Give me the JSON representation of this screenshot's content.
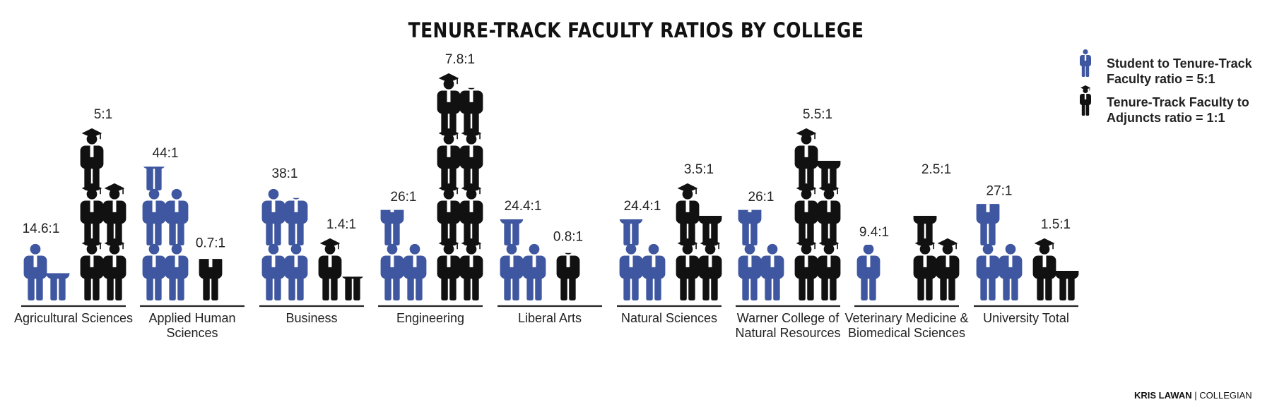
{
  "title": "TENURE-TRACK FACULTY RATIOS BY COLLEGE",
  "legend": [
    {
      "icon": "student-figure-icon",
      "color": "#3f57a0",
      "line1": "Student to Tenure-Track",
      "line2": "Faculty ratio = 5:1"
    },
    {
      "icon": "faculty-figure-icon",
      "color": "#111111",
      "line1": "Tenure-Track Faculty to",
      "line2": "Adjuncts ratio = 1:1"
    }
  ],
  "credit": {
    "author": "KRIS LAWAN",
    "outlet": "COLLEGIAN"
  },
  "colors": {
    "student": "#3f57a0",
    "faculty": "#111111",
    "axis": "#222222"
  },
  "chart_data": {
    "type": "pictograph",
    "units": {
      "student_icon": "Student to Tenure-Track Faculty ratio = 5:1",
      "faculty_icon": "Tenure-Track Faculty to Adjuncts ratio = 1:1"
    },
    "categories": [
      {
        "lines": [
          "Agricultural Sciences"
        ],
        "student_label": "14.6:1",
        "student_value": 14.6,
        "faculty_label": "5:1",
        "faculty_value": 5
      },
      {
        "lines": [
          "Applied Human",
          "Sciences"
        ],
        "student_label": "44:1",
        "student_value": 44,
        "faculty_label": "0.7:1",
        "faculty_value": 0.7
      },
      {
        "lines": [
          "Business"
        ],
        "student_label": "38:1",
        "student_value": 38,
        "faculty_label": "1.4:1",
        "faculty_value": 1.4
      },
      {
        "lines": [
          "Engineering"
        ],
        "student_label": "26:1",
        "student_value": 26,
        "faculty_label": "7.8:1",
        "faculty_value": 7.8
      },
      {
        "lines": [
          "Liberal Arts"
        ],
        "student_label": "24.4:1",
        "student_value": 24.4,
        "faculty_label": "0.8:1",
        "faculty_value": 0.8
      },
      {
        "lines": [
          "Natural Sciences"
        ],
        "student_label": "24.4:1",
        "student_value": 24.4,
        "faculty_label": "3.5:1",
        "faculty_value": 3.5
      },
      {
        "lines": [
          "Warner College of",
          "Natural Resources"
        ],
        "student_label": "26:1",
        "student_value": 26,
        "faculty_label": "5.5:1",
        "faculty_value": 5.5
      },
      {
        "lines": [
          "Veterinary Medicine &",
          "Biomedical Sciences"
        ],
        "student_label": "9.4:1",
        "student_value": 9.4,
        "faculty_label": "2.5:1",
        "faculty_value": 2.5
      },
      {
        "lines": [
          "University Total"
        ],
        "student_label": "27:1",
        "student_value": 27,
        "faculty_label": "1.5:1",
        "faculty_value": 1.5
      }
    ]
  }
}
